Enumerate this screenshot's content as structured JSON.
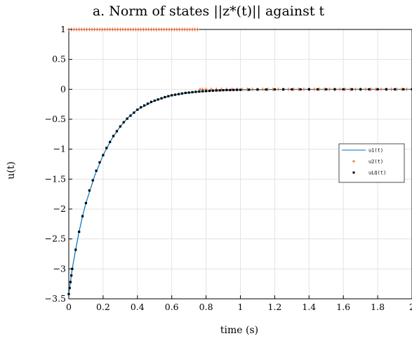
{
  "chart_data": {
    "type": "line",
    "title": "a. Norm of states ||z*(t)|| against t",
    "xlabel": "time (s)",
    "ylabel": "u(t)",
    "xlim": [
      0,
      2
    ],
    "ylim": [
      -3.5,
      1
    ],
    "grid": true,
    "x_ticks": [
      0,
      0.2,
      0.4,
      0.6,
      0.8,
      1,
      1.2,
      1.4,
      1.6,
      1.8,
      2
    ],
    "x_tick_labels": [
      "0",
      "0.2",
      "0.4",
      "0.6",
      "0.8",
      "1",
      "1.2",
      "1.4",
      "1.6",
      "1.8",
      "2"
    ],
    "y_ticks": [
      -3.5,
      -3,
      -2.5,
      -2,
      -1.5,
      -1,
      -0.5,
      0,
      0.5,
      1
    ],
    "y_tick_labels": [
      "−3.5",
      "−3",
      "−2.5",
      "−2",
      "−1.5",
      "−1",
      "−0.5",
      "0",
      "0.5",
      "1"
    ],
    "legend": {
      "placement": "right"
    },
    "series": [
      {
        "name": "u1(t)",
        "style": "line",
        "color": "#0072BD",
        "x": [
          0,
          0.02,
          0.04,
          0.06,
          0.08,
          0.1,
          0.15,
          0.2,
          0.25,
          0.3,
          0.35,
          0.4,
          0.5,
          0.6,
          0.7,
          0.8,
          0.9,
          1.0,
          1.2,
          1.4,
          1.6,
          1.8,
          2.0
        ],
        "y": [
          -3.42,
          -3.0,
          -2.68,
          -2.38,
          -2.12,
          -1.9,
          -1.45,
          -1.1,
          -0.83,
          -0.62,
          -0.46,
          -0.34,
          -0.19,
          -0.1,
          -0.055,
          -0.03,
          -0.015,
          -0.008,
          -0.002,
          -0.001,
          0,
          0,
          0
        ]
      },
      {
        "name": "u2(t)",
        "style": "marker",
        "marker": "+",
        "color": "#D95319",
        "x": [
          0,
          0.015,
          0.03,
          0.045,
          0.06,
          0.075,
          0.09,
          0.105,
          0.12,
          0.135,
          0.15,
          0.165,
          0.18,
          0.195,
          0.21,
          0.225,
          0.24,
          0.255,
          0.27,
          0.285,
          0.3,
          0.315,
          0.33,
          0.345,
          0.36,
          0.375,
          0.39,
          0.405,
          0.42,
          0.435,
          0.45,
          0.465,
          0.48,
          0.495,
          0.51,
          0.525,
          0.54,
          0.555,
          0.57,
          0.585,
          0.6,
          0.615,
          0.63,
          0.645,
          0.66,
          0.675,
          0.69,
          0.705,
          0.72,
          0.735,
          0.75,
          0.765,
          0.78,
          0.8,
          0.83,
          0.86,
          0.89,
          0.92,
          0.95,
          0.98,
          1.01,
          1.04,
          1.07,
          1.1,
          1.13,
          1.16,
          1.19,
          1.22,
          1.25,
          1.28,
          1.31,
          1.34,
          1.37,
          1.4,
          1.43,
          1.46,
          1.49,
          1.52,
          1.55,
          1.58,
          1.61,
          1.64,
          1.67,
          1.7,
          1.73,
          1.76,
          1.79,
          1.82,
          1.85,
          1.88,
          1.91,
          1.94,
          1.97,
          2.0
        ],
        "y": [
          1,
          1,
          1,
          1,
          1,
          1,
          1,
          1,
          1,
          1,
          1,
          1,
          1,
          1,
          1,
          1,
          1,
          1,
          1,
          1,
          1,
          1,
          1,
          1,
          1,
          1,
          1,
          1,
          1,
          1,
          1,
          1,
          1,
          1,
          1,
          1,
          1,
          1,
          1,
          1,
          1,
          1,
          1,
          1,
          1,
          1,
          1,
          1,
          1,
          1,
          1,
          0,
          0,
          0,
          0,
          0,
          0,
          0,
          0,
          0,
          0,
          0,
          0,
          0,
          0,
          0,
          0,
          0,
          0,
          0,
          0,
          0,
          0,
          0,
          0,
          0,
          0,
          0,
          0,
          0,
          0,
          0,
          0,
          0,
          0,
          0,
          0,
          0,
          0,
          0,
          0,
          0,
          0,
          0
        ]
      },
      {
        "name": "uLQ(t)",
        "style": "marker",
        "marker": "square",
        "color": "#000000",
        "x": [
          0,
          0.005,
          0.01,
          0.015,
          0.02,
          0.04,
          0.06,
          0.08,
          0.1,
          0.12,
          0.14,
          0.16,
          0.18,
          0.2,
          0.22,
          0.24,
          0.26,
          0.28,
          0.3,
          0.32,
          0.34,
          0.36,
          0.38,
          0.4,
          0.42,
          0.44,
          0.46,
          0.48,
          0.5,
          0.52,
          0.54,
          0.56,
          0.58,
          0.6,
          0.62,
          0.64,
          0.66,
          0.68,
          0.7,
          0.72,
          0.74,
          0.76,
          0.78,
          0.8,
          0.82,
          0.84,
          0.86,
          0.88,
          0.9,
          0.92,
          0.94,
          0.96,
          0.98,
          1.0,
          1.05,
          1.1,
          1.15,
          1.2,
          1.25,
          1.3,
          1.35,
          1.4,
          1.45,
          1.5,
          1.55,
          1.6,
          1.65,
          1.7,
          1.75,
          1.8,
          1.85,
          1.9,
          1.95,
          2.0
        ],
        "y": [
          -3.42,
          -3.32,
          -3.22,
          -3.11,
          -3.0,
          -2.68,
          -2.38,
          -2.12,
          -1.9,
          -1.69,
          -1.52,
          -1.36,
          -1.22,
          -1.1,
          -0.98,
          -0.88,
          -0.78,
          -0.7,
          -0.62,
          -0.55,
          -0.49,
          -0.44,
          -0.39,
          -0.34,
          -0.3,
          -0.27,
          -0.24,
          -0.21,
          -0.19,
          -0.17,
          -0.15,
          -0.13,
          -0.115,
          -0.1,
          -0.09,
          -0.08,
          -0.07,
          -0.06,
          -0.055,
          -0.048,
          -0.042,
          -0.037,
          -0.033,
          -0.03,
          -0.026,
          -0.023,
          -0.02,
          -0.018,
          -0.015,
          -0.013,
          -0.012,
          -0.01,
          -0.009,
          -0.008,
          -0.006,
          -0.004,
          -0.003,
          -0.002,
          -0.0015,
          -0.001,
          -0.001,
          0,
          0,
          0,
          0,
          0,
          0,
          0,
          0,
          0,
          0,
          0,
          0,
          0
        ]
      }
    ]
  }
}
